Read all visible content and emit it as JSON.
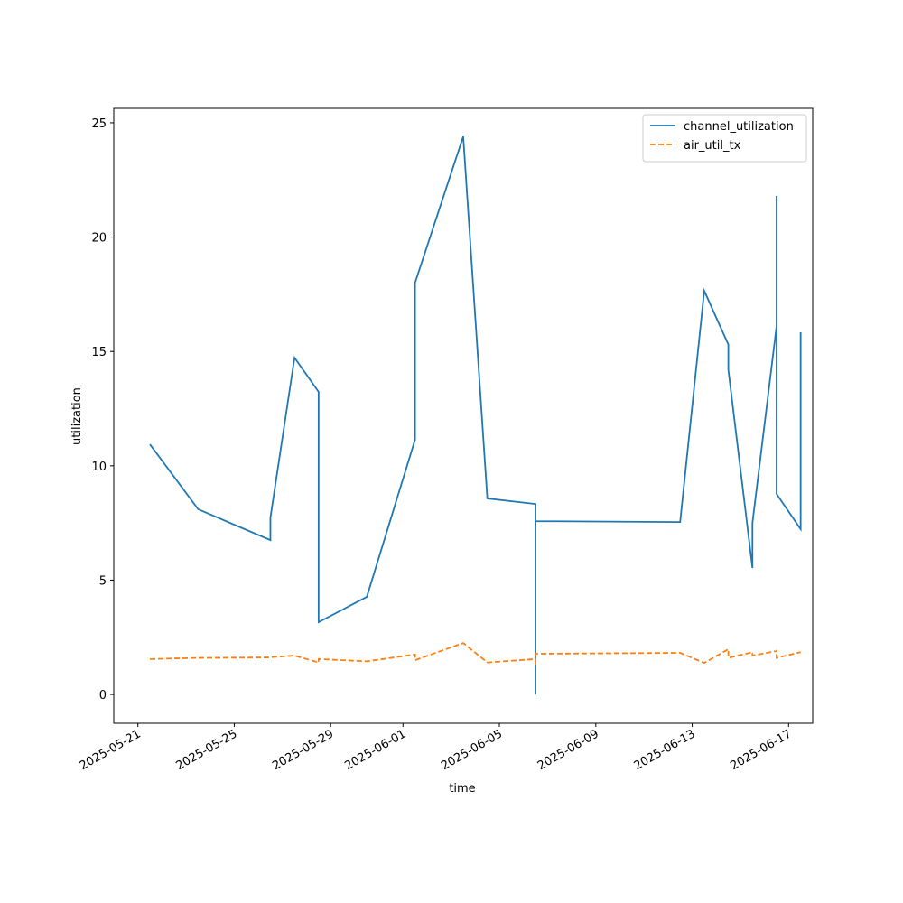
{
  "chart_data": {
    "type": "line",
    "xlabel": "time",
    "ylabel": "utilization",
    "x": [
      "2025-05-21",
      "2025-05-23",
      "2025-05-26",
      "2025-05-26",
      "2025-05-27",
      "2025-05-28",
      "2025-05-28",
      "2025-05-30",
      "2025-06-01",
      "2025-06-01",
      "2025-06-03",
      "2025-06-04",
      "2025-06-06",
      "2025-06-06",
      "2025-06-06",
      "2025-06-12",
      "2025-06-13",
      "2025-06-14",
      "2025-06-14",
      "2025-06-15",
      "2025-06-15",
      "2025-06-16",
      "2025-06-16",
      "2025-06-16",
      "2025-06-17",
      "2025-06-17"
    ],
    "series": [
      {
        "name": "channel_utilization",
        "color": "#1f77b4",
        "dash": false,
        "values": [
          10.94,
          8.1,
          6.75,
          7.74,
          14.73,
          13.23,
          3.16,
          4.27,
          11.14,
          18.0,
          24.4,
          8.57,
          8.33,
          0,
          7.58,
          7.54,
          17.65,
          15.3,
          14.2,
          5.53,
          7.5,
          16.1,
          21.8,
          8.77,
          7.23,
          15.84
        ]
      },
      {
        "name": "air_util_tx",
        "color": "#ff7f0e",
        "dash": true,
        "values": [
          1.55,
          1.6,
          1.62,
          1.63,
          1.7,
          1.4,
          1.55,
          1.45,
          1.75,
          1.5,
          2.25,
          1.4,
          1.55,
          1.25,
          1.78,
          1.82,
          1.38,
          1.98,
          1.6,
          1.85,
          1.7,
          1.9,
          1.95,
          1.6,
          1.85,
          1.85
        ]
      }
    ],
    "xlim": [
      "2025-05-20",
      "2025-06-18"
    ],
    "xticks": [
      "2025-05-21",
      "2025-05-25",
      "2025-05-29",
      "2025-06-01",
      "2025-06-05",
      "2025-06-09",
      "2025-06-13",
      "2025-06-17"
    ],
    "ylim": [
      -1.26,
      25.63
    ],
    "yticks": [
      0,
      5,
      10,
      15,
      20,
      25
    ],
    "legend": "upper right",
    "grid": false
  }
}
